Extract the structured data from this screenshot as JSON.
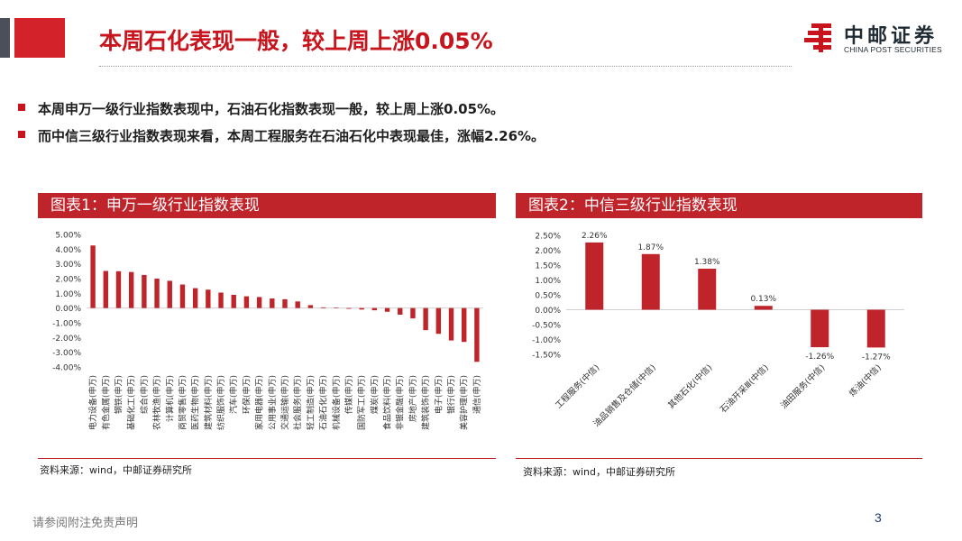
{
  "header": {
    "title": "本周石化表现一般，较上周上涨0.05%",
    "logo_cn": "中邮证券",
    "logo_en": "CHINA POST SECURITIES"
  },
  "bullets": [
    "本周申万一级行业指数表现中，石油石化指数表现一般，较上周上涨0.05%。",
    "而中信三级行业指数表现来看，本周工程服务在石油石化中表现最佳，涨幅2.26%。"
  ],
  "chart1_header": "图表1：申万一级行业指数表现",
  "chart2_header": "图表2：中信三级行业指数表现",
  "source1": "资料来源：wind，中邮证券研究所",
  "source2": "资料来源：wind，中邮证券研究所",
  "footer": {
    "disclaimer": "请参阅附注免责声明",
    "page": "3"
  },
  "colors": {
    "accent": "#c0242b",
    "title": "#c8151d",
    "bar": "#c0242b"
  },
  "chart_data": [
    {
      "type": "bar",
      "title": "",
      "ylim": [
        -4,
        5
      ],
      "ytick_step": 1,
      "ytick_format": "percent_2dp",
      "grid": false,
      "categories": [
        "电力设备(申万)",
        "有色金属(申万)",
        "钢铁(申万)",
        "基础化工(申万)",
        "综合(申万)",
        "农林牧渔(申万)",
        "计算机(申万)",
        "商贸零售(申万)",
        "医药生物(申万)",
        "建筑材料(申万)",
        "纺织服饰(申万)",
        "汽车(申万)",
        "环保(申万)",
        "家用电器(申万)",
        "公用事业(申万)",
        "交通运输(申万)",
        "社会服务(申万)",
        "轻工制造(申万)",
        "石油石化(申万)",
        "机械设备(申万)",
        "传媒(申万)",
        "国防军工(申万)",
        "煤炭(申万)",
        "食品饮料(申万)",
        "非银金融(申万)",
        "房地产(申万)",
        "建筑装饰(申万)",
        "电子(申万)",
        "银行(申万)",
        "美容护理(申万)",
        "通信(申万)"
      ],
      "values": [
        4.25,
        2.52,
        2.5,
        2.45,
        2.25,
        2.0,
        1.85,
        1.6,
        1.35,
        1.25,
        1.05,
        0.9,
        0.8,
        0.75,
        0.65,
        0.6,
        0.45,
        0.2,
        0.05,
        0.03,
        -0.05,
        -0.1,
        -0.15,
        -0.25,
        -0.45,
        -0.7,
        -1.5,
        -1.75,
        -2.2,
        -2.3,
        -3.65
      ]
    },
    {
      "type": "bar",
      "title": "",
      "ylim": [
        -1.5,
        2.5
      ],
      "ytick_step": 0.5,
      "ytick_format": "percent_2dp",
      "grid": false,
      "categories": [
        "工程服务(中信)",
        "油品销售及仓储(中信)",
        "其他石化(中信)",
        "石油开采Ⅲ(中信)",
        "油田服务(中信)",
        "炼油(中信)"
      ],
      "values": [
        2.26,
        1.87,
        1.38,
        0.13,
        -1.26,
        -1.27
      ],
      "data_labels": [
        "2.26%",
        "1.87%",
        "1.38%",
        "0.13%",
        "-1.26%",
        "-1.27%"
      ]
    }
  ]
}
